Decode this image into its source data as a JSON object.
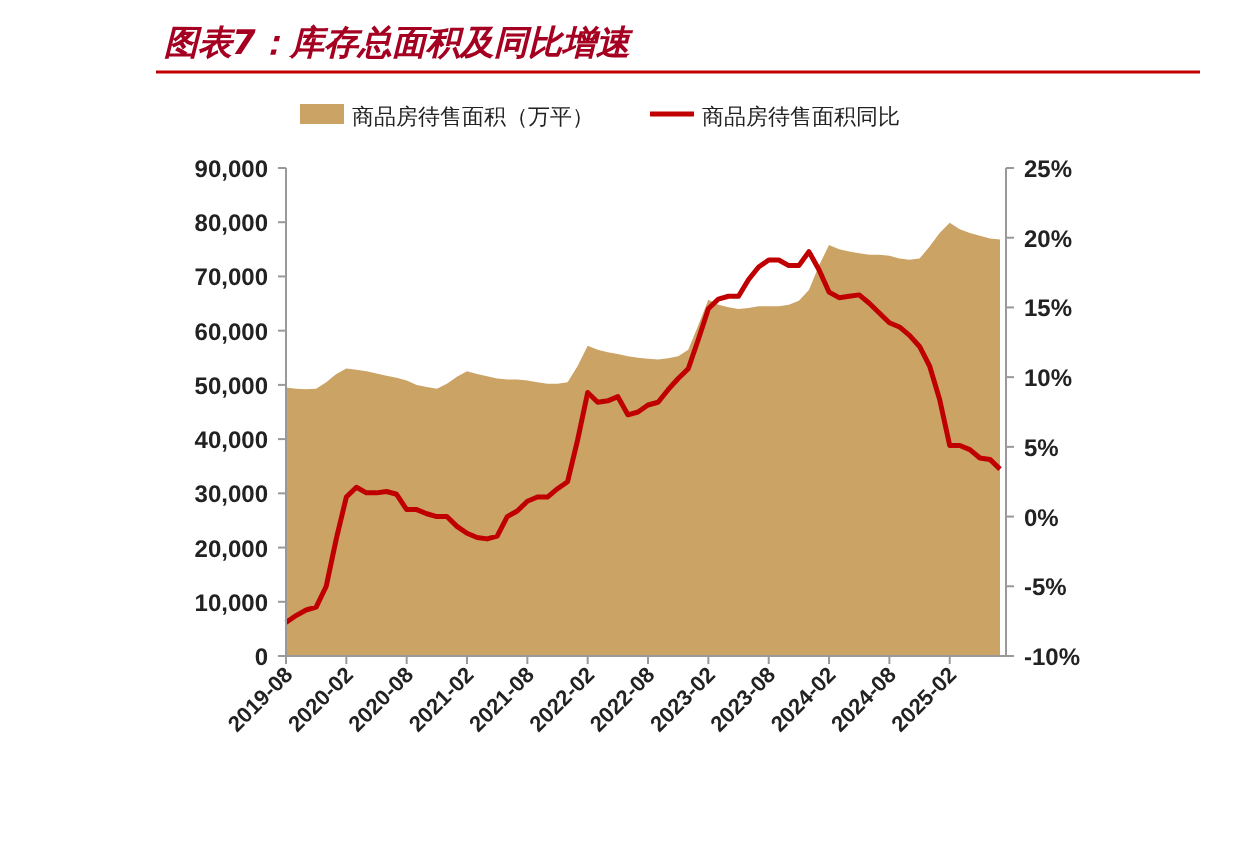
{
  "chart_data": {
    "type": "area",
    "title": "图表7：库存总面积及同比增速",
    "categories": [
      "2019-08",
      null,
      null,
      null,
      null,
      null,
      "2020-02",
      null,
      null,
      null,
      null,
      null,
      "2020-08",
      null,
      null,
      null,
      null,
      null,
      "2021-02",
      null,
      null,
      null,
      null,
      null,
      "2021-08",
      null,
      null,
      null,
      null,
      null,
      "2022-02",
      null,
      null,
      null,
      null,
      null,
      "2022-08",
      null,
      null,
      null,
      null,
      null,
      "2023-02",
      null,
      null,
      null,
      null,
      null,
      "2023-08",
      null,
      null,
      null,
      null,
      null,
      "2024-02",
      null,
      null,
      null,
      null,
      null,
      "2024-08",
      null,
      null,
      null,
      null,
      null,
      "2025-02",
      null,
      null,
      null,
      null,
      null
    ],
    "series": [
      {
        "name": "商品房待售面积（万平）",
        "type": "area",
        "axis": "y",
        "color": "#cba365",
        "values": [
          49500,
          49300,
          49200,
          49300,
          50500,
          52000,
          53000,
          52800,
          52500,
          52100,
          51700,
          51300,
          50800,
          50000,
          49600,
          49300,
          50200,
          51500,
          52500,
          52000,
          51600,
          51200,
          51000,
          51000,
          50800,
          50500,
          50200,
          50200,
          50500,
          53500,
          57200,
          56500,
          56000,
          55700,
          55300,
          55000,
          54800,
          54700,
          54900,
          55300,
          56500,
          61000,
          65700,
          64800,
          64300,
          64000,
          64200,
          64500,
          64500,
          64500,
          64800,
          65500,
          67500,
          72000,
          75800,
          75000,
          74600,
          74300,
          74000,
          74000,
          73800,
          73300,
          73100,
          73300,
          75500,
          78000,
          79900,
          78700,
          78000,
          77500,
          77000,
          76800
        ]
      },
      {
        "name": "商品房待售面积同比",
        "type": "line",
        "axis": "y2",
        "color": "#c00000",
        "values": [
          -7.6,
          -7.1,
          -6.7,
          -6.5,
          -5.0,
          -1.6,
          1.4,
          2.1,
          1.7,
          1.7,
          1.8,
          1.6,
          0.5,
          0.5,
          0.2,
          0.0,
          0.0,
          -0.7,
          -1.2,
          -1.5,
          -1.6,
          -1.4,
          0.0,
          0.4,
          1.1,
          1.4,
          1.4,
          2.0,
          2.5,
          5.5,
          8.9,
          8.2,
          8.3,
          8.6,
          7.3,
          7.5,
          8.0,
          8.2,
          9.1,
          9.9,
          10.6,
          12.7,
          14.9,
          15.6,
          15.8,
          15.8,
          17.0,
          17.9,
          18.4,
          18.4,
          18.0,
          18.0,
          19.0,
          17.7,
          16.1,
          15.7,
          15.8,
          15.9,
          15.3,
          14.6,
          13.9,
          13.6,
          13.0,
          12.2,
          10.8,
          8.4,
          5.1,
          5.1,
          4.8,
          4.2,
          4.1,
          3.4
        ]
      }
    ],
    "ylim": [
      0,
      90000
    ],
    "yticks": [
      0,
      {
        "value": 10000,
        "label": "10,000"
      },
      {
        "value": 20000,
        "label": "20,000"
      },
      {
        "value": 30000,
        "label": "30,000"
      },
      {
        "value": 40000,
        "label": "40,000"
      },
      {
        "value": 50000,
        "label": "50,000"
      },
      {
        "value": 60000,
        "label": "60,000"
      },
      {
        "value": 70000,
        "label": "70,000"
      },
      {
        "value": 80000,
        "label": "80,000"
      },
      {
        "value": 90000,
        "label": "90,000"
      }
    ],
    "y2lim": [
      -10,
      25
    ],
    "y2ticks": [
      {
        "value": -10,
        "label": "-10%"
      },
      {
        "value": -5,
        "label": "-5%"
      },
      {
        "value": 0,
        "label": "0%"
      },
      {
        "value": 5,
        "label": "5%"
      },
      {
        "value": 10,
        "label": "10%"
      },
      {
        "value": 15,
        "label": "15%"
      },
      {
        "value": 20,
        "label": "20%"
      },
      {
        "value": 25,
        "label": "25%"
      }
    ],
    "legend": "top",
    "grid": false
  }
}
